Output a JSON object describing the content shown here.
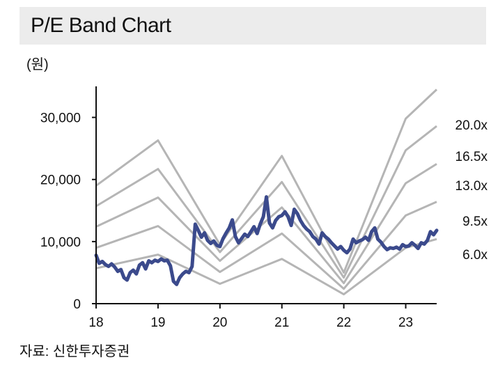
{
  "title": "P/E Band Chart",
  "unit_label": "(원)",
  "source": "자료: 신한투자증권",
  "colors": {
    "price": "#3b4a8c",
    "band": "#b5b5b5",
    "axis": "#111111",
    "title_bg": "#ececec"
  },
  "chart_data": {
    "type": "line",
    "title": "P/E Band Chart",
    "ylabel": "(원)",
    "xlabel": "",
    "xlim": [
      2018.0,
      2023.5
    ],
    "ylim": [
      0,
      35000
    ],
    "y_ticks": [
      0,
      10000,
      20000,
      30000
    ],
    "y_tick_labels": [
      "0",
      "10,000",
      "20,000",
      "30,000"
    ],
    "x_ticks": [
      2018,
      2019,
      2020,
      2021,
      2022,
      2023
    ],
    "x_tick_labels": [
      "18",
      "19",
      "20",
      "21",
      "22",
      "23"
    ],
    "grid": false,
    "bands": [
      {
        "name": "20.0x",
        "x": [
          2018.0,
          2019.0,
          2020.0,
          2021.0,
          2022.0,
          2023.0,
          2023.5
        ],
        "y": [
          19000,
          26300,
          9500,
          23800,
          5000,
          29800,
          34500
        ]
      },
      {
        "name": "16.5x",
        "x": [
          2018.0,
          2019.0,
          2020.0,
          2021.0,
          2022.0,
          2023.0,
          2023.5
        ],
        "y": [
          15700,
          21700,
          8300,
          19600,
          4200,
          24700,
          28600
        ]
      },
      {
        "name": "13.0x",
        "x": [
          2018.0,
          2019.0,
          2020.0,
          2021.0,
          2022.0,
          2023.0,
          2023.5
        ],
        "y": [
          12400,
          17100,
          6900,
          15500,
          3300,
          19400,
          22500
        ]
      },
      {
        "name": "9.5x",
        "x": [
          2018.0,
          2019.0,
          2020.0,
          2021.0,
          2022.0,
          2023.0,
          2023.5
        ],
        "y": [
          9000,
          12500,
          5100,
          11300,
          2400,
          14200,
          16400
        ]
      },
      {
        "name": "6.0x",
        "x": [
          2018.0,
          2019.0,
          2020.0,
          2021.0,
          2022.0,
          2023.0,
          2023.5
        ],
        "y": [
          5700,
          7900,
          3200,
          7200,
          1500,
          9000,
          10400
        ]
      }
    ],
    "series": [
      {
        "x": [
          2018.0,
          2018.05,
          2018.1,
          2018.15,
          2018.2,
          2018.25,
          2018.3,
          2018.35,
          2018.4,
          2018.45,
          2018.5,
          2018.55,
          2018.6,
          2018.65,
          2018.7,
          2018.75,
          2018.8,
          2018.85,
          2018.9,
          2018.95,
          2019.0,
          2019.05,
          2019.1,
          2019.15,
          2019.2,
          2019.25,
          2019.3,
          2019.35,
          2019.4,
          2019.45,
          2019.5,
          2019.55,
          2019.6,
          2019.65,
          2019.7,
          2019.75,
          2019.8,
          2019.85,
          2019.9,
          2019.95,
          2020.0,
          2020.05,
          2020.1,
          2020.15,
          2020.2,
          2020.25,
          2020.3,
          2020.35,
          2020.4,
          2020.45,
          2020.5,
          2020.55,
          2020.6,
          2020.65,
          2020.7,
          2020.75,
          2020.8,
          2020.85,
          2020.9,
          2020.95,
          2021.0,
          2021.05,
          2021.1,
          2021.15,
          2021.2,
          2021.25,
          2021.3,
          2021.35,
          2021.4,
          2021.45,
          2021.5,
          2021.55,
          2021.6,
          2021.65,
          2021.7,
          2021.75,
          2021.8,
          2021.85,
          2021.9,
          2021.95,
          2022.0,
          2022.05,
          2022.1,
          2022.15,
          2022.2,
          2022.25,
          2022.3,
          2022.35,
          2022.4,
          2022.45,
          2022.5,
          2022.55,
          2022.6,
          2022.65,
          2022.7,
          2022.75,
          2022.8,
          2022.85,
          2022.9,
          2022.95,
          2023.0,
          2023.05,
          2023.1,
          2023.15,
          2023.2,
          2023.25,
          2023.3,
          2023.35,
          2023.4,
          2023.45,
          2023.5
        ],
        "y": [
          7800,
          6500,
          6800,
          6300,
          6000,
          6400,
          5900,
          5200,
          5500,
          4200,
          3800,
          5000,
          5400,
          4800,
          6200,
          6600,
          5600,
          6900,
          6600,
          7000,
          6800,
          7200,
          6900,
          7000,
          6100,
          3600,
          3100,
          4200,
          4800,
          5200,
          5000,
          6000,
          12800,
          11800,
          10700,
          11400,
          10200,
          9700,
          10100,
          9400,
          9200,
          10500,
          11400,
          12200,
          13500,
          10800,
          9800,
          10500,
          11200,
          10800,
          11600,
          12400,
          11300,
          12800,
          14000,
          17200,
          13000,
          12200,
          13400,
          14000,
          14200,
          14800,
          14000,
          12600,
          15200,
          14500,
          13400,
          12600,
          12000,
          11600,
          10800,
          10400,
          9600,
          11400,
          10800,
          10400,
          9800,
          9300,
          8800,
          9200,
          8600,
          8200,
          8800,
          10400,
          9800,
          10100,
          10300,
          10700,
          10200,
          11600,
          12200,
          10400,
          9900,
          9200,
          8700,
          9000,
          8900,
          9100,
          8800,
          9500,
          9200,
          9300,
          9800,
          9400,
          8900,
          9800,
          9600,
          10200,
          11600,
          11100,
          11800
        ]
      }
    ]
  }
}
